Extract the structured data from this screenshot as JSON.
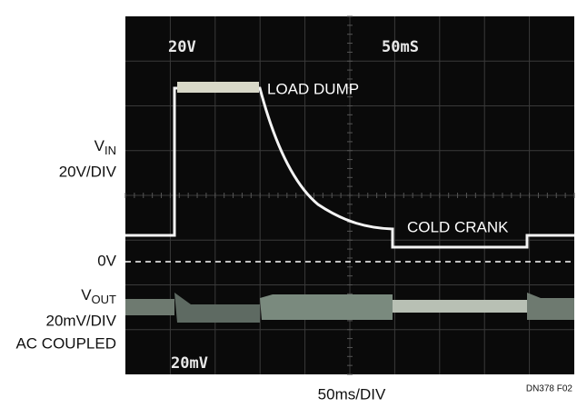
{
  "screen": {
    "top_left_label": "20V",
    "top_right_label": "50mS",
    "bottom_left_label": "20mV"
  },
  "annotations": {
    "load_dump": "LOAD DUMP",
    "cold_crank": "COLD CRANK"
  },
  "left_labels": {
    "vin_main": "V",
    "vin_sub": "IN",
    "vin_scale": "20V/DIV",
    "zero": "0V",
    "vout_main": "V",
    "vout_sub": "OUT",
    "vout_scale": "20mV/DIV",
    "vout_coupling": "AC COUPLED"
  },
  "x_axis_label": "50ms/DIV",
  "figure_id": "DN378 F02"
}
